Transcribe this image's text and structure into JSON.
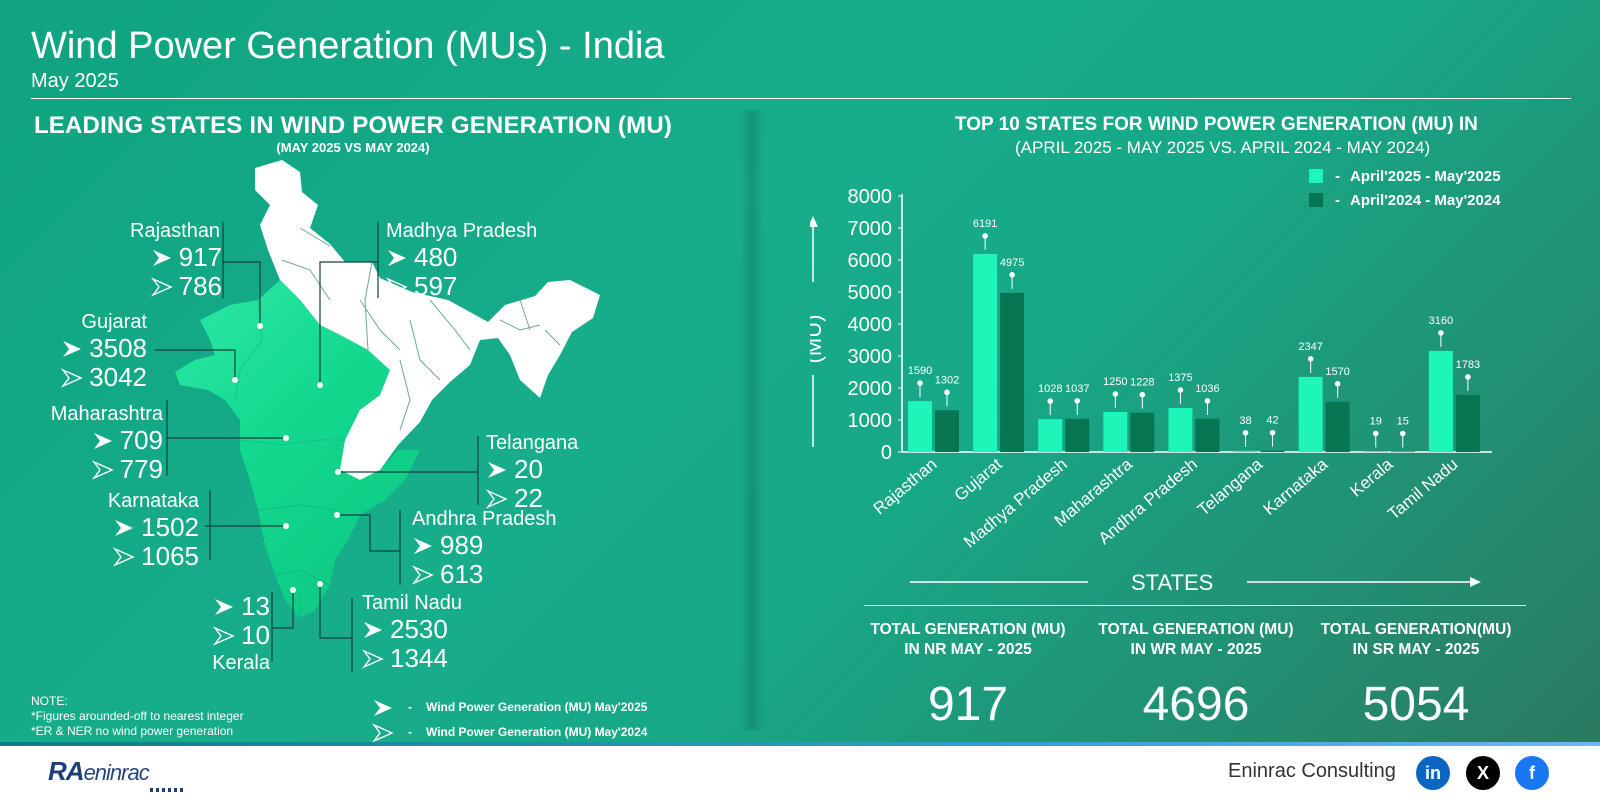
{
  "header": {
    "title": "Wind Power Generation (MUs) - India",
    "subtitle": "May 2025"
  },
  "map_panel": {
    "heading": "LEADING STATES IN WIND POWER GENERATION (MU)",
    "subheading": "(MAY 2025 VS MAY 2024)",
    "states": [
      {
        "key": "rajasthan",
        "name": "Rajasthan",
        "may2025": "917",
        "may2024": "786"
      },
      {
        "key": "madhya-pradesh",
        "name": "Madhya Pradesh",
        "may2025": "480",
        "may2024": "597"
      },
      {
        "key": "gujarat",
        "name": "Gujarat",
        "may2025": "3508",
        "may2024": "3042"
      },
      {
        "key": "maharashtra",
        "name": "Maharashtra",
        "may2025": "709",
        "may2024": "779"
      },
      {
        "key": "telangana",
        "name": "Telangana",
        "may2025": "20",
        "may2024": "22"
      },
      {
        "key": "karnataka",
        "name": "Karnataka",
        "may2025": "1502",
        "may2024": "1065"
      },
      {
        "key": "andhra-pradesh",
        "name": "Andhra Pradesh",
        "may2025": "989",
        "may2024": "613"
      },
      {
        "key": "kerala",
        "name": "Kerala",
        "may2025": "13",
        "may2024": "10"
      },
      {
        "key": "tamil-nadu",
        "name": "Tamil Nadu",
        "may2025": "2530",
        "may2024": "1344"
      }
    ],
    "notes": [
      "NOTE:",
      "*Figures arounded-off to nearest integer",
      "*ER & NER no wind power generation"
    ],
    "legend": [
      {
        "dash": "-",
        "label": "Wind Power Generation (MU) May'2025"
      },
      {
        "dash": "-",
        "label": "Wind Power Generation (MU) May'2024"
      }
    ]
  },
  "chart_panel": {
    "heading": "TOP 10 STATES FOR WIND POWER GENERATION (MU) IN",
    "subheading": "(APRIL 2025 - MAY 2025 VS. APRIL 2024 - MAY 2024)",
    "legend": [
      {
        "dash": "-",
        "label": "April'2025 - May'2025"
      },
      {
        "dash": "-",
        "label": "April'2024 - May'2024"
      }
    ],
    "states_label": "STATES"
  },
  "chart_data": {
    "type": "bar",
    "title": "TOP 10 STATES FOR WIND POWER GENERATION (MU) IN",
    "subtitle": "(APRIL 2025 - MAY 2025 VS. APRIL 2024 - MAY 2024)",
    "xlabel": "STATES",
    "ylabel": "(MU)",
    "ylim": [
      0,
      8000
    ],
    "yticks": [
      0,
      1000,
      2000,
      3000,
      4000,
      5000,
      6000,
      7000,
      8000
    ],
    "categories": [
      "Rajasthan",
      "Gujarat",
      "Madhya Pradesh",
      "Maharashtra",
      "Andhra Pradesh",
      "Telangana",
      "Karnataka",
      "Kerala",
      "Tamil Nadu"
    ],
    "series": [
      {
        "name": "April'2025 - May'2025",
        "color": "#1df5b9",
        "values": [
          1590,
          6191,
          1028,
          1250,
          1375,
          38,
          2347,
          19,
          3160
        ]
      },
      {
        "name": "April'2024 - May'2024",
        "color": "#067552",
        "values": [
          1302,
          4975,
          1037,
          1228,
          1036,
          42,
          1570,
          15,
          1783
        ]
      }
    ],
    "grid": false,
    "legend_position": "top-right"
  },
  "totals": [
    {
      "line1": "TOTAL  GENERATION (MU)",
      "line2": "IN NR MAY - 2025",
      "value": "917"
    },
    {
      "line1": "TOTAL  GENERATION (MU)",
      "line2": "IN WR MAY - 2025",
      "value": "4696"
    },
    {
      "line1": "TOTAL  GENERATION(MU)",
      "line2": "IN SR MAY - 2025",
      "value": "5054"
    }
  ],
  "footer": {
    "logo_text": "RA",
    "logo_sub": "eninrac",
    "company": "Eninrac Consulting",
    "social": [
      {
        "icon": "linkedin-icon",
        "label": "in",
        "color": "#0a66c2"
      },
      {
        "icon": "x-icon",
        "label": "X",
        "color": "#000000"
      },
      {
        "icon": "facebook-icon",
        "label": "f",
        "color": "#1877f2"
      }
    ]
  }
}
